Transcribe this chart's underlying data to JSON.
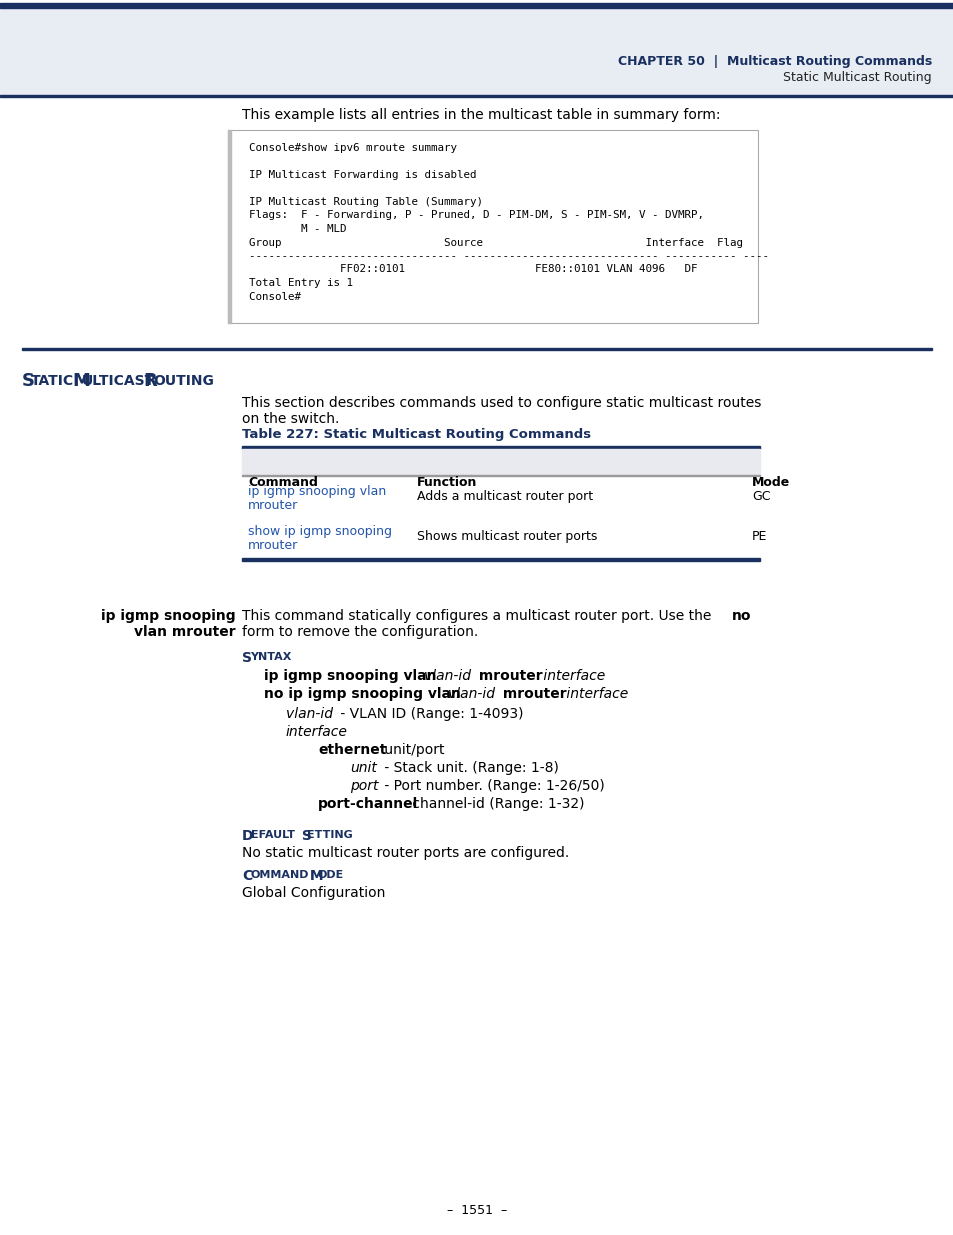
{
  "header_bar_color": "#1a3060",
  "header_bg_color": "#e8eaf0",
  "page_bg": "#ffffff",
  "intro_text": "This example lists all entries in the multicast table in summary form:",
  "code_lines": [
    "  Console#show ipv6 mroute summary",
    "",
    "  IP Multicast Forwarding is disabled",
    "",
    "  IP Multicast Routing Table (Summary)",
    "  Flags:  F - Forwarding, P - Pruned, D - PIM-DM, S - PIM-SM, V - DVMRP,",
    "          M - MLD",
    "  Group                         Source                         Interface  Flag",
    "  -------------------------------- ------------------------------ ----------- ----",
    "                FF02::0101                    FE80::0101 VLAN 4096   DF",
    "  Total Entry is 1",
    "  Console#"
  ],
  "section_line_color": "#1a3060",
  "table_title": "Table 227: Static Multicast Routing Commands",
  "table_title_color": "#1a3060",
  "table_header_bg": "#e8eaf0",
  "table_border_color": "#1a3060",
  "table_columns": [
    "Command",
    "Function",
    "Mode"
  ],
  "table_rows": [
    [
      "ip igmp snooping vlan\nmrouter",
      "Adds a multicast router port",
      "GC"
    ],
    [
      "show ip igmp snooping\nmrouter",
      "Shows multicast router ports",
      "PE"
    ]
  ],
  "table_link_color": "#2255aa",
  "default_text": "No static multicast router ports are configured.",
  "cmdmode_text": "Global Configuration",
  "page_number": "–  1551  –",
  "label_color": "#1a3060"
}
